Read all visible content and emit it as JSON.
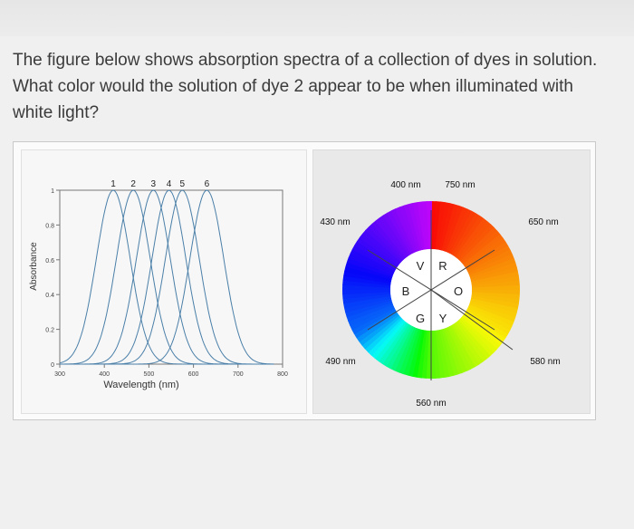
{
  "question": {
    "line1": "The figure below shows absorption spectra of a collection of dyes in solution.",
    "line2": "What color would the solution of dye 2 appear to be when illuminated with",
    "line3": "white light?"
  },
  "chart_data": {
    "type": "line",
    "xlabel": "Wavelength (nm)",
    "ylabel": "Absorbance",
    "xlim": [
      300,
      800
    ],
    "ylim": [
      0,
      1
    ],
    "x_ticks": [
      "300",
      "400",
      "500",
      "600",
      "700",
      "800"
    ],
    "y_ticks": [
      "0",
      "0.2",
      "0.4",
      "0.6",
      "0.8",
      "1"
    ],
    "series": [
      {
        "name": "1",
        "peak_nm": 420,
        "peak": 1.0
      },
      {
        "name": "2",
        "peak_nm": 465,
        "peak": 1.0
      },
      {
        "name": "3",
        "peak_nm": 510,
        "peak": 1.0
      },
      {
        "name": "4",
        "peak_nm": 545,
        "peak": 1.0
      },
      {
        "name": "5",
        "peak_nm": 575,
        "peak": 1.0
      },
      {
        "name": "6",
        "peak_nm": 630,
        "peak": 1.0
      }
    ]
  },
  "color_wheel": {
    "labels": {
      "nm400": "400 nm",
      "nm750": "750 nm",
      "nm430": "430 nm",
      "nm650": "650 nm",
      "nm490": "490 nm",
      "nm580": "580 nm",
      "nm560": "560 nm"
    },
    "letters": {
      "v": "V",
      "r": "R",
      "b": "B",
      "o": "O",
      "g": "G",
      "y": "Y"
    }
  }
}
